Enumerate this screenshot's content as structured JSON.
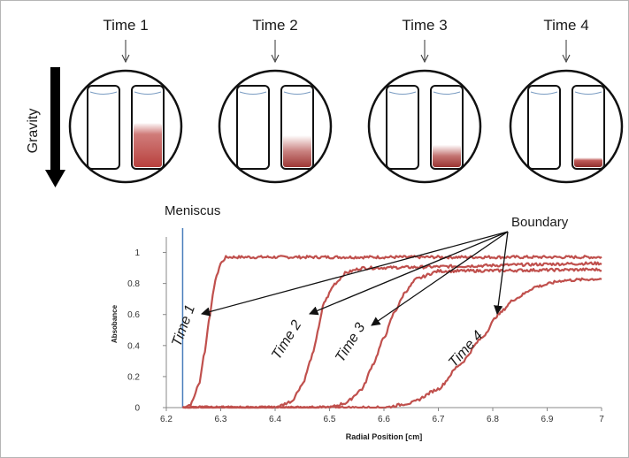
{
  "times": [
    "Time 1",
    "Time 2",
    "Time 3",
    "Time 4"
  ],
  "gravity_label": "Gravity",
  "meniscus_label": "Meniscus",
  "boundary_label": "Boundary",
  "fills": [
    0.55,
    0.4,
    0.28,
    0.12
  ],
  "colors": {
    "curve": "#c0504d",
    "meniscus": "#4a7ebb",
    "tube_fill": "#c0504d",
    "frame": "#b5b5b5"
  },
  "chart_data": {
    "type": "line",
    "xlabel": "Radial Position [cm]",
    "ylabel": "Absobance",
    "xlim": [
      6.2,
      7
    ],
    "ylim": [
      0,
      1.1
    ],
    "x_ticks": [
      "6.2",
      "6.3",
      "6.4",
      "6.5",
      "6.6",
      "6.7",
      "6.8",
      "6.9",
      "7"
    ],
    "y_ticks": [
      "0",
      "0.2",
      "0.4",
      "0.6",
      "0.8",
      "1"
    ],
    "meniscus_x": 6.23,
    "series": [
      {
        "name": "Time 1",
        "x": [
          6.23,
          6.245,
          6.26,
          6.27,
          6.28,
          6.29,
          6.3,
          6.31,
          6.33,
          7.0
        ],
        "y": [
          0.0,
          0.02,
          0.15,
          0.35,
          0.6,
          0.82,
          0.93,
          0.97,
          0.97,
          0.97
        ]
      },
      {
        "name": "Time 2",
        "x": [
          6.23,
          6.4,
          6.43,
          6.45,
          6.47,
          6.48,
          6.49,
          6.51,
          6.53,
          6.56,
          7.0
        ],
        "y": [
          0.0,
          0.0,
          0.04,
          0.15,
          0.35,
          0.52,
          0.68,
          0.8,
          0.87,
          0.9,
          0.93
        ]
      },
      {
        "name": "Time 3",
        "x": [
          6.23,
          6.5,
          6.53,
          6.56,
          6.58,
          6.6,
          6.62,
          6.64,
          6.66,
          6.7,
          7.0
        ],
        "y": [
          0.0,
          0.0,
          0.03,
          0.12,
          0.28,
          0.45,
          0.62,
          0.75,
          0.83,
          0.88,
          0.89
        ]
      },
      {
        "name": "Time 4",
        "x": [
          6.23,
          6.6,
          6.65,
          6.7,
          6.74,
          6.78,
          6.81,
          6.84,
          6.88,
          6.93,
          7.0
        ],
        "y": [
          0.0,
          0.0,
          0.03,
          0.12,
          0.28,
          0.45,
          0.6,
          0.7,
          0.78,
          0.82,
          0.83
        ]
      }
    ],
    "curve_labels": [
      "Time 1",
      "Time 2",
      "Time 3",
      "Time 4"
    ]
  }
}
